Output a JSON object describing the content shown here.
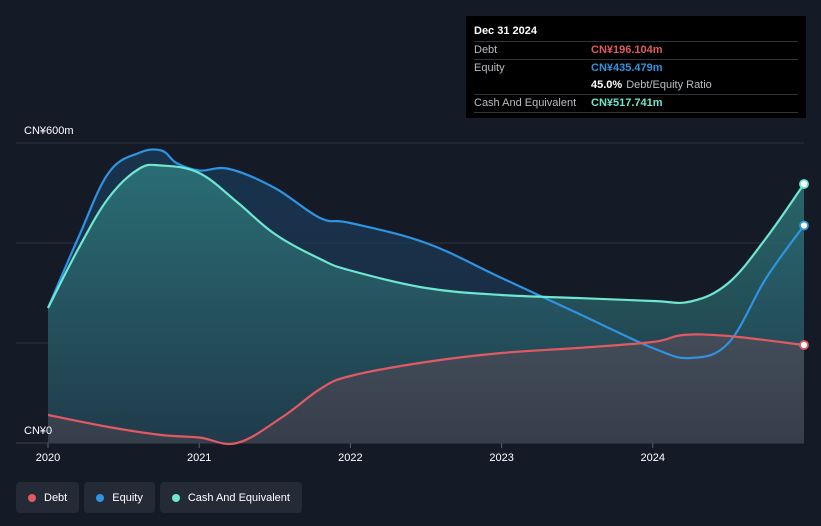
{
  "tooltip": {
    "date": "Dec 31 2024",
    "debt_label": "Debt",
    "debt_value": "CN¥196.104m",
    "equity_label": "Equity",
    "equity_value": "CN¥435.479m",
    "ratio_value": "45.0%",
    "ratio_label": "Debt/Equity Ratio",
    "cash_label": "Cash And Equivalent",
    "cash_value": "CN¥517.741m"
  },
  "legend": [
    {
      "label": "Debt",
      "color": "#e05a64"
    },
    {
      "label": "Equity",
      "color": "#2f93e0"
    },
    {
      "label": "Cash And Equivalent",
      "color": "#6fe6d0"
    }
  ],
  "chart_data": {
    "type": "area",
    "ylabel_top": "CN¥600m",
    "ylabel_bottom": "CN¥0",
    "ylim": [
      0,
      600
    ],
    "xlim": [
      2020,
      2025
    ],
    "x_ticks": [
      "2020",
      "2021",
      "2022",
      "2023",
      "2024"
    ],
    "grid": true,
    "series": [
      {
        "name": "Debt",
        "color": "#e05a64",
        "x": [
          2020,
          2020.4,
          2020.75,
          2021.0,
          2021.25,
          2021.55,
          2021.8,
          2022.0,
          2022.5,
          2023.0,
          2023.5,
          2024.0,
          2024.2,
          2024.5,
          2025.0
        ],
        "values": [
          56,
          32,
          16,
          11,
          0,
          52,
          108,
          134,
          162,
          180,
          190,
          202,
          216,
          214,
          196
        ]
      },
      {
        "name": "Equity",
        "color": "#2f93e0",
        "x": [
          2020,
          2020.2,
          2020.4,
          2020.6,
          2020.75,
          2020.85,
          2021.0,
          2021.2,
          2021.5,
          2021.8,
          2022.0,
          2022.5,
          2023.0,
          2023.5,
          2024.0,
          2024.25,
          2024.5,
          2024.75,
          2025.0
        ],
        "values": [
          270,
          410,
          540,
          580,
          585,
          560,
          545,
          548,
          510,
          450,
          440,
          400,
          330,
          260,
          190,
          170,
          200,
          330,
          435
        ]
      },
      {
        "name": "Cash And Equivalent",
        "color": "#6fe6d0",
        "x": [
          2020,
          2020.2,
          2020.4,
          2020.6,
          2020.75,
          2021.0,
          2021.25,
          2021.5,
          2021.8,
          2022.0,
          2022.5,
          2023.0,
          2023.5,
          2024.0,
          2024.25,
          2024.5,
          2024.75,
          2025.0
        ],
        "values": [
          270,
          388,
          490,
          548,
          555,
          540,
          482,
          418,
          368,
          345,
          310,
          296,
          290,
          284,
          283,
          320,
          410,
          518
        ]
      }
    ]
  }
}
